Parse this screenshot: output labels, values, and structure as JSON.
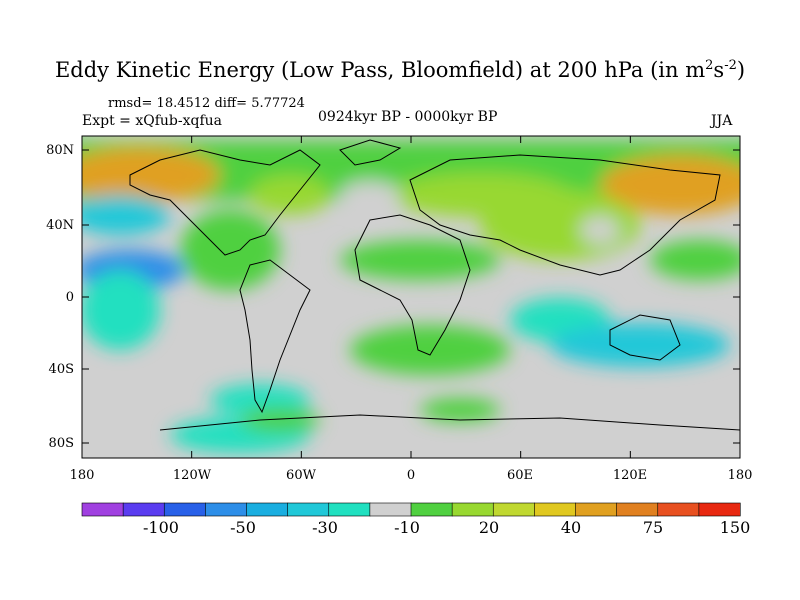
{
  "title_main": "Eddy Kinetic Energy (Low Pass, Bloomfield) at 200 hPa (in m",
  "title_sup1": "2",
  "title_mid": "s",
  "title_sup2": "-2",
  "title_end": ")",
  "stats": "rmsd= 18.4512 diff= 5.77724",
  "experiment": "Expt = xQfub-xqfua",
  "period": "0924kyr BP - 0000kyr BP",
  "season": "JJA",
  "lat_ticks": [
    "80N",
    "40N",
    "0",
    "40S",
    "80S"
  ],
  "lon_ticks": [
    "180",
    "120W",
    "60W",
    "0",
    "60E",
    "120E",
    "180"
  ],
  "colorbar": {
    "colors": [
      "#a040e0",
      "#5a3cf0",
      "#2860e8",
      "#2d8ee8",
      "#1aaee0",
      "#20c8d8",
      "#20e0c0",
      "#d0d0d0",
      "#50d040",
      "#98d830",
      "#c0d830",
      "#e0c820",
      "#e0a020",
      "#e08020",
      "#e85020",
      "#e82810"
    ],
    "labels": [
      "-100",
      "-50",
      "-30",
      "-10",
      "20",
      "40",
      "75",
      "150"
    ]
  }
}
